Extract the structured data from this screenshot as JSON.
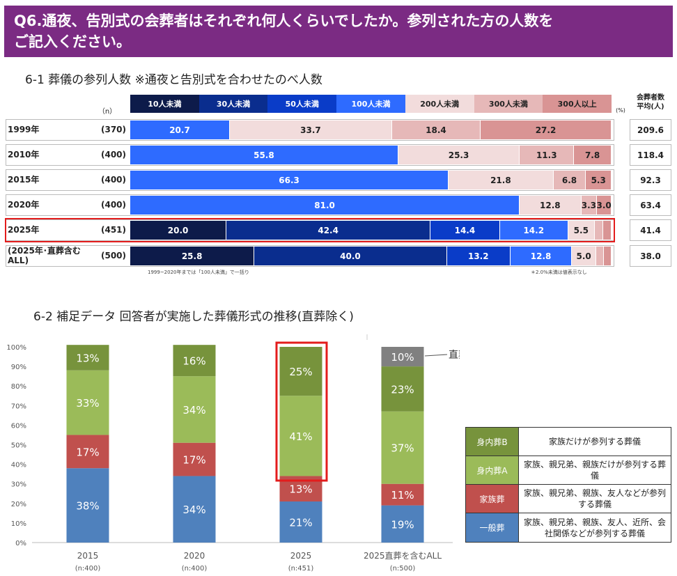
{
  "header": {
    "title_line1": "Q6.通夜、告別式の会葬者はそれぞれ何人くらいでしたか。参列された方の人数を",
    "title_line2": "ご記入ください。"
  },
  "section1": {
    "title": "6-1 葬儀の参列人数 ※通夜と告別式を合わせたのべ人数",
    "n_label": "（n）",
    "unit_label": "(%)",
    "avg_header_1": "会葬者数",
    "avg_header_2": "平均(人)",
    "note_left": "1999~2020年までは「100人未満」で一括り",
    "note_right": "＊2.0%未満は値表示なし"
  },
  "colors": {
    "c10": "#0d1b4a",
    "c30": "#0a2d8e",
    "c50": "#0a3cc8",
    "c100": "#2e6bff",
    "c200": "#f2dcdc",
    "c300": "#e6b8b8",
    "c300p": "#d99494",
    "ippan": "#4f81bd",
    "kazoku": "#c0504d",
    "miuchiA": "#9bbb59",
    "miuchiB": "#77933c",
    "chokuso": "#808080",
    "header": "#7b2b83",
    "highlight": "#e31c1c"
  },
  "chart_data": [
    {
      "type": "bar",
      "orientation": "horizontal-stacked",
      "title": "6-1 葬儀の参列人数 ※通夜と告別式を合わせたのべ人数",
      "legend": [
        "10人未満",
        "30人未満",
        "50人未満",
        "100人未満",
        "200人未満",
        "300人未満",
        "300人以上"
      ],
      "rows": [
        {
          "label": "1999年",
          "n": "(370)",
          "avg": "209.6",
          "values": [
            null,
            null,
            null,
            20.7,
            33.7,
            18.4,
            27.2
          ]
        },
        {
          "label": "2010年",
          "n": "(400)",
          "avg": "118.4",
          "values": [
            null,
            null,
            null,
            55.8,
            25.3,
            11.3,
            7.8
          ]
        },
        {
          "label": "2015年",
          "n": "(400)",
          "avg": "92.3",
          "values": [
            null,
            null,
            null,
            66.3,
            21.8,
            6.8,
            5.3
          ]
        },
        {
          "label": "2020年",
          "n": "(400)",
          "avg": "63.4",
          "values": [
            null,
            null,
            null,
            81.0,
            12.8,
            3.3,
            3.0
          ]
        },
        {
          "label": "2025年",
          "n": "(451)",
          "avg": "41.4",
          "values": [
            20.0,
            42.4,
            14.4,
            14.2,
            5.5,
            1.8,
            1.7
          ]
        },
        {
          "label": "(2025年･直葬含む ALL)",
          "n": "(500)",
          "avg": "38.0",
          "values": [
            25.8,
            40.0,
            13.2,
            12.8,
            5.0,
            1.6,
            1.6
          ]
        }
      ],
      "value_labels": [
        [
          "",
          "",
          "",
          "20.7",
          "33.7",
          "18.4",
          "27.2"
        ],
        [
          "",
          "",
          "",
          "55.8",
          "25.3",
          "11.3",
          "7.8"
        ],
        [
          "",
          "",
          "",
          "66.3",
          "21.8",
          "6.8",
          "5.3"
        ],
        [
          "",
          "",
          "",
          "81.0",
          "12.8",
          "3.3",
          "3.0"
        ],
        [
          "20.0",
          "42.4",
          "14.4",
          "14.2",
          "5.5",
          "",
          ""
        ],
        [
          "25.8",
          "40.0",
          "13.2",
          "12.8",
          "5.0",
          "",
          ""
        ]
      ],
      "highlight_row": "2025年"
    },
    {
      "type": "bar",
      "orientation": "vertical-stacked",
      "title": "6-2 補足データ 回答者が実施した葬儀形式の推移(直葬除く)",
      "ylim": [
        0,
        100
      ],
      "yticks": [
        "0%",
        "10%",
        "20%",
        "30%",
        "40%",
        "50%",
        "60%",
        "70%",
        "80%",
        "90%",
        "100%"
      ],
      "categories": [
        "2015",
        "2020",
        "2025",
        "2025直葬を含むALL"
      ],
      "n_labels": [
        "(n:400)",
        "(n:400)",
        "(n:451)",
        "(n:500)"
      ],
      "series": [
        {
          "name": "一般葬",
          "values": [
            38,
            34,
            21,
            19
          ]
        },
        {
          "name": "家族葬",
          "values": [
            17,
            17,
            13,
            11
          ]
        },
        {
          "name": "身内葬A",
          "values": [
            33,
            34,
            41,
            37
          ]
        },
        {
          "name": "身内葬B",
          "values": [
            13,
            16,
            25,
            23
          ]
        },
        {
          "name": "直葬",
          "values": [
            0,
            0,
            0,
            10
          ]
        }
      ],
      "labels": [
        [
          "38%",
          "17%",
          "33%",
          "13%",
          ""
        ],
        [
          "34%",
          "17%",
          "34%",
          "16%",
          ""
        ],
        [
          "21%",
          "13%",
          "41%",
          "25%",
          ""
        ],
        [
          "19%",
          "11%",
          "37%",
          "23%",
          "10%"
        ]
      ],
      "annotation": "直葬",
      "highlight_category": "2025"
    }
  ],
  "legend_table": [
    {
      "name": "身内葬B",
      "desc": "家族だけが参列する葬儀"
    },
    {
      "name": "身内葬A",
      "desc": "家族、親兄弟、親族だけが参列する葬儀"
    },
    {
      "name": "家族葬",
      "desc": "家族、親兄弟、親族、友人などが参列する葬儀"
    },
    {
      "name": "一般葬",
      "desc": "家族、親兄弟、親族、友人、近所、会社関係などが参列する葬儀"
    }
  ]
}
